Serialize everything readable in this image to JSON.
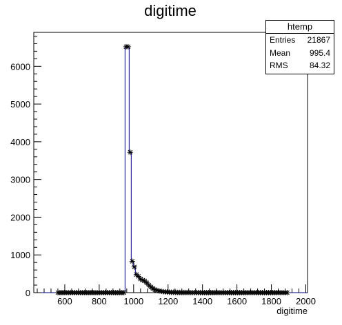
{
  "chart_data": {
    "type": "histogram",
    "title": "digitime",
    "xlabel": "digitime",
    "ylabel": "",
    "xlim": [
      420,
      2010
    ],
    "ylim": [
      0,
      6900
    ],
    "x_ticks": [
      600,
      800,
      1000,
      1200,
      1400,
      1600,
      1800,
      2000
    ],
    "y_ticks": [
      0,
      1000,
      2000,
      3000,
      4000,
      5000,
      6000
    ],
    "bin_width": 12,
    "x": [
      560,
      572,
      584,
      596,
      608,
      620,
      632,
      644,
      656,
      668,
      680,
      692,
      704,
      716,
      728,
      740,
      752,
      764,
      776,
      788,
      800,
      812,
      824,
      836,
      848,
      860,
      872,
      884,
      896,
      908,
      920,
      932,
      944,
      956,
      968,
      980,
      992,
      1004,
      1016,
      1028,
      1040,
      1052,
      1064,
      1076,
      1088,
      1100,
      1112,
      1124,
      1136,
      1148,
      1160,
      1172,
      1184,
      1196,
      1208,
      1220,
      1232,
      1244,
      1256,
      1268,
      1280,
      1292,
      1304,
      1316,
      1328,
      1340,
      1352,
      1364,
      1376,
      1388,
      1400,
      1412,
      1424,
      1436,
      1448,
      1460,
      1472,
      1484,
      1496,
      1508,
      1520,
      1532,
      1544,
      1556,
      1568,
      1580,
      1592,
      1604,
      1616,
      1628,
      1640,
      1652,
      1664,
      1676,
      1688,
      1700,
      1712,
      1724,
      1736,
      1748,
      1760,
      1772,
      1784,
      1796,
      1808,
      1820,
      1832,
      1844,
      1856,
      1868,
      1880,
      1892
    ],
    "values": [
      0,
      0,
      0,
      0,
      0,
      0,
      0,
      0,
      0,
      0,
      0,
      0,
      0,
      0,
      0,
      0,
      0,
      0,
      0,
      0,
      0,
      0,
      0,
      0,
      0,
      0,
      0,
      0,
      0,
      0,
      0,
      0,
      0,
      6520,
      6520,
      3720,
      830,
      680,
      480,
      430,
      360,
      330,
      310,
      260,
      200,
      150,
      110,
      80,
      60,
      45,
      35,
      25,
      20,
      15,
      12,
      10,
      8,
      6,
      5,
      4,
      3,
      3,
      2,
      2,
      1,
      1,
      1,
      1,
      1,
      1,
      0,
      0,
      0,
      0,
      0,
      0,
      0,
      0,
      0,
      0,
      0,
      0,
      0,
      0,
      0,
      0,
      0,
      0,
      0,
      0,
      0,
      0,
      0,
      0,
      0,
      0,
      0,
      0,
      0,
      0,
      0,
      0,
      0,
      0,
      0,
      0,
      0,
      0,
      0,
      0,
      0,
      0
    ],
    "line_color": "#000080",
    "marker": "asterisk",
    "stats": {
      "title": "htemp",
      "rows": [
        {
          "label": "Entries",
          "value": "21867"
        },
        {
          "label": "Mean",
          "value": "995.4"
        },
        {
          "label": "RMS",
          "value": "84.32"
        }
      ]
    }
  }
}
